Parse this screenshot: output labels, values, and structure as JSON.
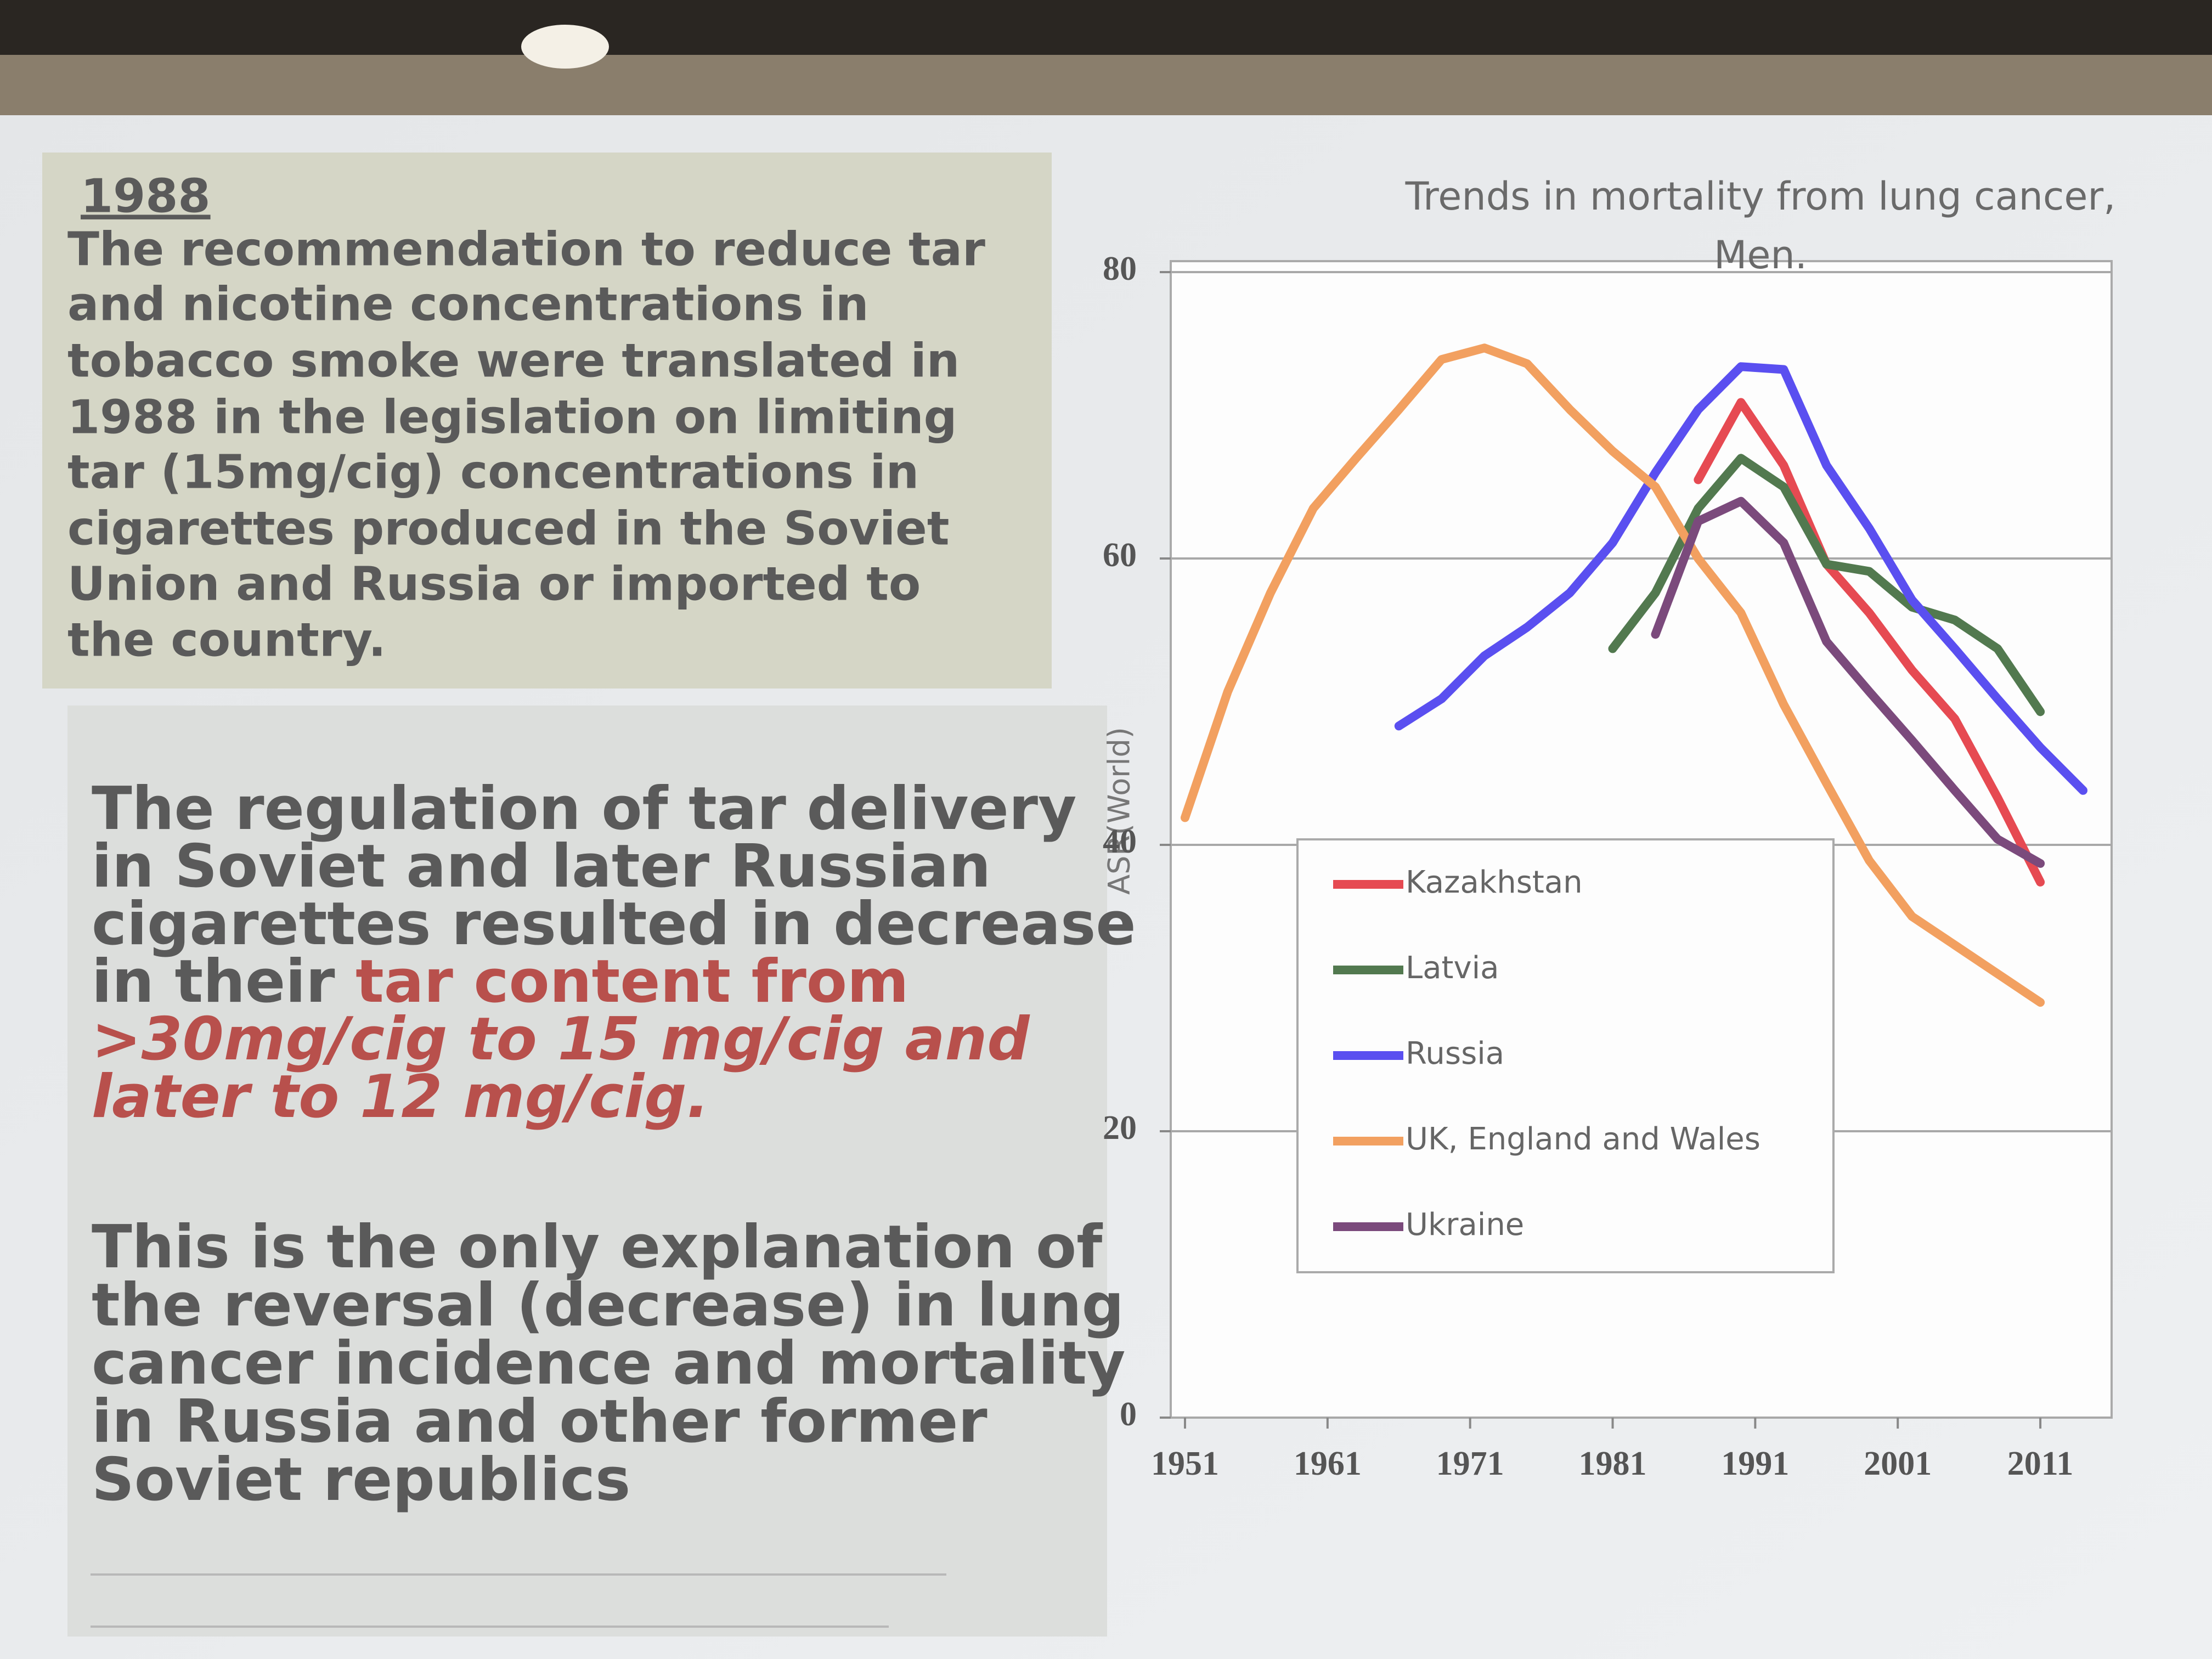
{
  "slide": {
    "box1": {
      "heading": "1988",
      "lines": [
        "The recommendation  to reduce tar",
        "and nicotine concentrations  in",
        "tobacco smoke were translated in",
        "1988 in the legislation on limiting",
        "tar (15mg/cig) concentrations in",
        "cigarettes produced in the Soviet",
        "Union and Russia  or  imported to",
        "the country."
      ]
    },
    "box2": {
      "paragraph1": [
        {
          "runs": [
            {
              "text": " The regulation of  tar delivery"
            }
          ]
        },
        {
          "runs": [
            {
              "text": "in Soviet and later Russian"
            }
          ]
        },
        {
          "runs": [
            {
              "text": "cigarettes resulted in decrease"
            }
          ]
        },
        {
          "runs": [
            {
              "text": "in  their "
            },
            {
              "text": "tar content  from",
              "color": "#b8504c"
            }
          ]
        },
        {
          "runs": [
            {
              "text": ">30mg/cig to 15 mg/cig and",
              "color": "#b8504c",
              "italic": true
            }
          ]
        },
        {
          "runs": [
            {
              "text": "later  to 12 mg/cig.",
              "color": "#b8504c",
              "italic": true
            }
          ]
        }
      ],
      "paragraph2": [
        "This is the only explanation of",
        "the reversal  (decrease)  in lung",
        "cancer  incidence and mortality",
        "in Russia and other former",
        "Soviet republics"
      ]
    }
  },
  "chart_data": {
    "type": "line",
    "title": [
      "Trends in mortality from lung cancer,",
      "Men."
    ],
    "y_label": "ASR(World)",
    "x": [
      1951,
      1954,
      1957,
      1960,
      1963,
      1966,
      1969,
      1972,
      1975,
      1978,
      1981,
      1984,
      1987,
      1990,
      1993,
      1996,
      1999,
      2002,
      2005,
      2008,
      2011,
      2014
    ],
    "xlim": [
      1950,
      2016
    ],
    "xticks": [
      1951,
      1961,
      1971,
      1981,
      1991,
      2001,
      2011
    ],
    "ylim": [
      0,
      80
    ],
    "yticks": [
      0,
      20,
      40,
      60,
      80
    ],
    "grid": true,
    "series": [
      {
        "name": "Kazakhstan",
        "color": "#e64a52",
        "values": [
          null,
          null,
          null,
          null,
          null,
          null,
          null,
          null,
          null,
          null,
          null,
          null,
          65.5,
          70.9,
          66.5,
          59.6,
          56.2,
          52.2,
          48.8,
          43.3,
          37.4,
          null
        ]
      },
      {
        "name": "Latvia",
        "color": "#52794f",
        "values": [
          null,
          null,
          null,
          null,
          null,
          null,
          null,
          null,
          null,
          null,
          53.7,
          57.6,
          63.5,
          67,
          65,
          59.6,
          59.1,
          56.6,
          55.7,
          53.7,
          49.3,
          null
        ]
      },
      {
        "name": "Russia",
        "color": "#5a4ff0",
        "values": [
          null,
          null,
          null,
          null,
          null,
          48.3,
          50.2,
          53.2,
          55.2,
          57.6,
          61.1,
          66,
          70.4,
          73.4,
          73.2,
          66.5,
          62.1,
          57.1,
          53.7,
          50.2,
          46.8,
          43.8
        ]
      },
      {
        "name": "UK, England and Wales",
        "color": "#f2a060",
        "values": [
          41.9,
          50.7,
          57.6,
          63.5,
          67,
          70.4,
          73.9,
          74.7,
          73.6,
          70.4,
          67.5,
          65,
          60,
          56.2,
          49.8,
          44.3,
          38.9,
          35,
          33,
          31,
          29,
          null
        ]
      },
      {
        "name": "Ukraine",
        "color": "#7b4a7c",
        "values": [
          null,
          null,
          null,
          null,
          null,
          null,
          null,
          null,
          null,
          null,
          null,
          54.7,
          62.6,
          64,
          61.1,
          54.2,
          50.7,
          47.3,
          43.8,
          40.4,
          38.7,
          null
        ]
      }
    ]
  }
}
